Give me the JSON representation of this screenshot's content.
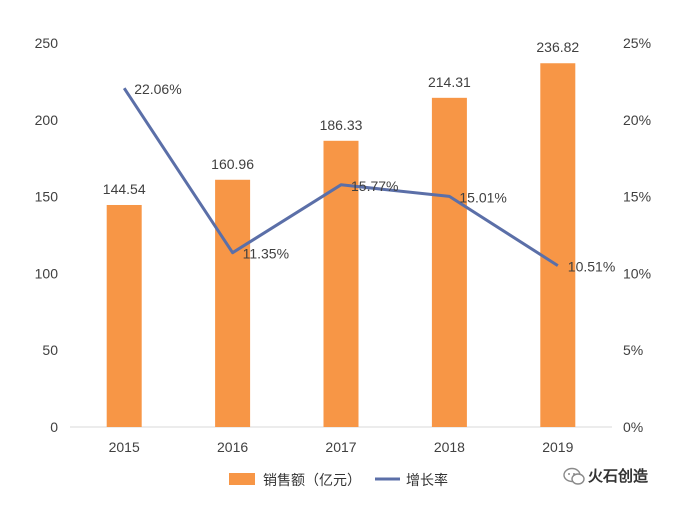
{
  "chart_data": {
    "type": "bar",
    "categories": [
      "2015",
      "2016",
      "2017",
      "2018",
      "2019"
    ],
    "series": [
      {
        "name": "销售额（亿元）",
        "kind": "bar",
        "axis": "left",
        "values": [
          144.54,
          160.96,
          186.33,
          214.31,
          236.82
        ],
        "labels": [
          "144.54",
          "160.96",
          "186.33",
          "214.31",
          "236.82"
        ],
        "color": "#F79646"
      },
      {
        "name": "增长率",
        "kind": "line",
        "axis": "right",
        "values": [
          22.06,
          11.35,
          15.77,
          15.01,
          10.51
        ],
        "labels": [
          "22.06%",
          "11.35%",
          "15.77%",
          "15.01%",
          "10.51%"
        ],
        "color": "#5B6FA8"
      }
    ],
    "y_left": {
      "min": 0,
      "max": 250,
      "ticks": [
        "0",
        "50",
        "100",
        "150",
        "200",
        "250"
      ],
      "values": [
        0,
        50,
        100,
        150,
        200,
        250
      ]
    },
    "y_right": {
      "min": 0,
      "max": 25,
      "ticks": [
        "0%",
        "5%",
        "10%",
        "15%",
        "20%",
        "25%"
      ],
      "values": [
        0,
        5,
        10,
        15,
        20,
        25
      ]
    },
    "legend_position": "bottom-center",
    "grid": false
  },
  "watermark": {
    "text": "火石创造"
  }
}
